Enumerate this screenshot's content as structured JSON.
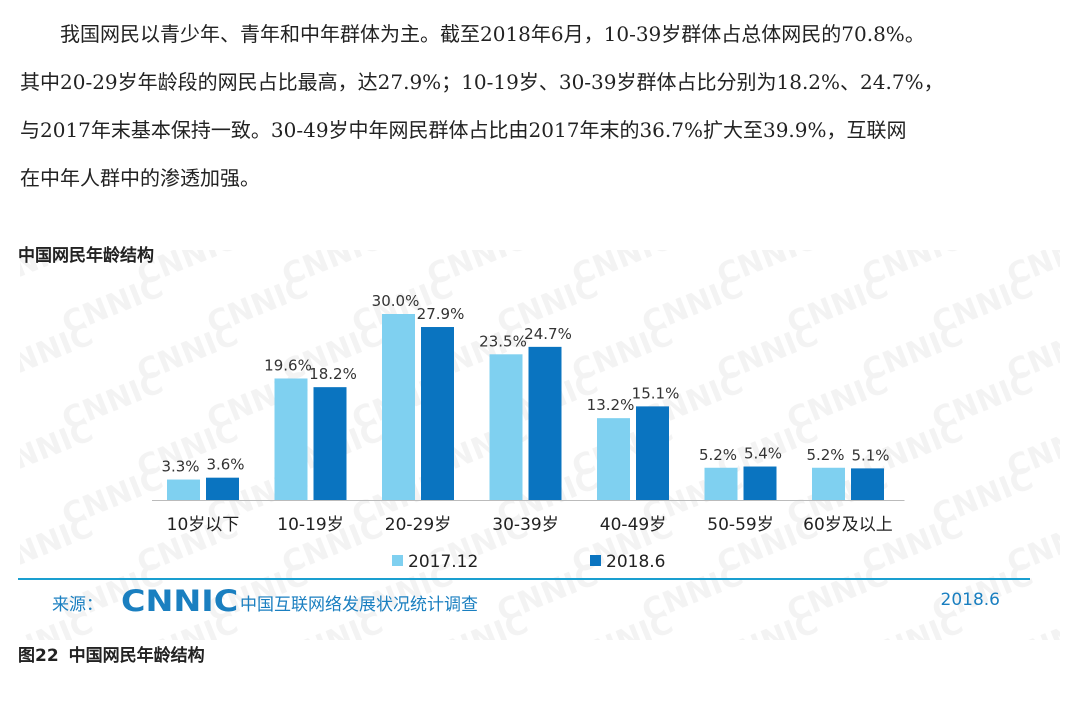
{
  "paragraph": {
    "lines": [
      "我国网民以青少年、青年和中年群体为主。截至2018年6月，10-39岁群体占总体网民的70.8%。",
      "其中20-29岁年龄段的网民占比最高，达27.9%；10-19岁、30-39岁群体占比分别为18.2%、24.7%，",
      "与2017年末基本保持一致。30-49岁中年网民群体占比由2017年末的36.7%扩大至39.9%，互联网",
      "在中年人群中的渗透加强。"
    ]
  },
  "chart_heading": "中国网民年龄结构",
  "colors": {
    "series_2017": "#7fd0f0",
    "series_2018": "#0a74c0",
    "axis": "#bbbbbb",
    "source_blue": "#1a7fc0"
  },
  "chart_data": {
    "type": "bar",
    "title": "中国网民年龄结构",
    "categories": [
      "10岁以下",
      "10-19岁",
      "20-29岁",
      "30-39岁",
      "40-49岁",
      "50-59岁",
      "60岁及以上"
    ],
    "series": [
      {
        "name": "2017.12",
        "values": [
          3.3,
          19.6,
          30.0,
          23.5,
          13.2,
          5.2,
          5.2
        ]
      },
      {
        "name": "2018.6",
        "values": [
          3.6,
          18.2,
          27.9,
          24.7,
          15.1,
          5.4,
          5.1
        ]
      }
    ],
    "data_labels": [
      [
        "3.3%",
        "19.6%",
        "30.0%",
        "23.5%",
        "13.2%",
        "5.2%",
        "5.2%"
      ],
      [
        "3.6%",
        "18.2%",
        "27.9%",
        "24.7%",
        "15.1%",
        "5.4%",
        "5.1%"
      ]
    ],
    "unit": "%",
    "ylim": [
      0,
      30
    ],
    "grid": false,
    "legend_position": "bottom"
  },
  "source": {
    "label": "来源：",
    "logo": "CNNIC",
    "org": "中国互联网络发展状况统计调查",
    "date": "2018.6"
  },
  "watermark": "CNNIC",
  "figure_caption": {
    "number": "图22",
    "title": "中国网民年龄结构"
  }
}
